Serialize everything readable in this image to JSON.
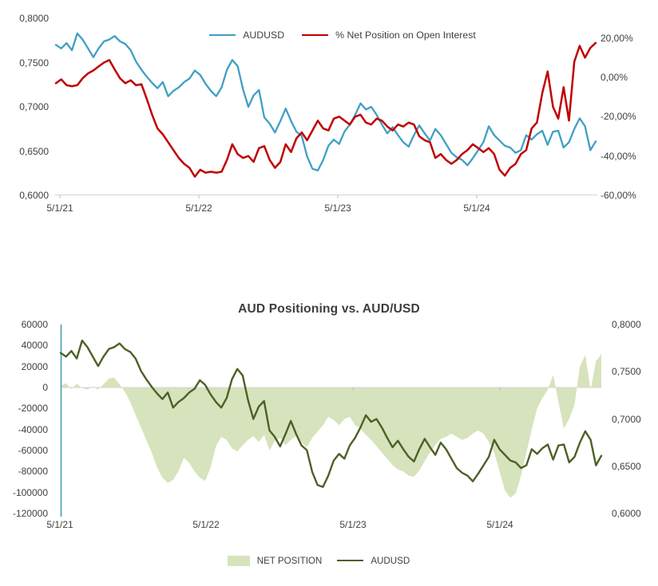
{
  "page": {
    "background": "#ffffff"
  },
  "colors": {
    "audusd_blue": "#3f9fc4",
    "net_pct_red": "#c00000",
    "net_position_fill": "#d6e3bc",
    "audusd_olive": "#4d6026",
    "axis_line": "#d6d6d6",
    "tick_mark": "#bfbfbf",
    "label_text": "#404040",
    "secondary_axis_line": "#3194ad"
  },
  "chart_data": [
    {
      "type": "line",
      "title": "",
      "legend_position": "top",
      "grid": "off",
      "x_tick_labels": [
        "5/1/21",
        "5/1/22",
        "5/1/23",
        "5/1/24"
      ],
      "y_left_axis": {
        "min": 0.6,
        "max": 0.8,
        "tick_labels_top_to_bottom": [
          "0,8000",
          "0,7500",
          "0,7000",
          "0,6500",
          "0,6000"
        ],
        "tick_values_top_to_bottom": [
          0.8,
          0.75,
          0.7,
          0.65,
          0.6
        ]
      },
      "y_right_axis": {
        "min": -60,
        "max": 30,
        "tick_labels_top_to_bottom": [
          "20,00%",
          "0,00%",
          "-20,00%",
          "-40,00%",
          "-60,00%"
        ],
        "tick_values_top_to_bottom": [
          20,
          0,
          -20,
          -40,
          -60
        ]
      },
      "series": [
        {
          "name": "AUDUSD",
          "type": "line",
          "axis": "left",
          "color_key": "audusd_blue",
          "values": [
            0.77,
            0.766,
            0.772,
            0.764,
            0.783,
            0.776,
            0.766,
            0.756,
            0.766,
            0.774,
            0.776,
            0.78,
            0.774,
            0.771,
            0.764,
            0.751,
            0.742,
            0.734,
            0.727,
            0.721,
            0.728,
            0.712,
            0.718,
            0.722,
            0.728,
            0.732,
            0.741,
            0.736,
            0.726,
            0.718,
            0.712,
            0.722,
            0.742,
            0.753,
            0.746,
            0.72,
            0.7,
            0.713,
            0.719,
            0.688,
            0.681,
            0.671,
            0.684,
            0.698,
            0.684,
            0.672,
            0.667,
            0.644,
            0.63,
            0.628,
            0.64,
            0.656,
            0.663,
            0.658,
            0.672,
            0.68,
            0.691,
            0.704,
            0.697,
            0.7,
            0.691,
            0.68,
            0.67,
            0.677,
            0.668,
            0.66,
            0.655,
            0.668,
            0.679,
            0.67,
            0.662,
            0.675,
            0.668,
            0.658,
            0.648,
            0.643,
            0.64,
            0.634,
            0.642,
            0.651,
            0.66,
            0.678,
            0.668,
            0.662,
            0.656,
            0.654,
            0.648,
            0.651,
            0.668,
            0.663,
            0.669,
            0.673,
            0.657,
            0.672,
            0.673,
            0.654,
            0.66,
            0.675,
            0.687,
            0.678,
            0.651,
            0.661
          ]
        },
        {
          "name": "% Net Position on Open Interest",
          "type": "line",
          "axis": "right",
          "color_key": "net_pct_red",
          "values": [
            -3,
            -1,
            -4,
            -4.5,
            -4,
            -0.5,
            2,
            3.5,
            5.5,
            7.5,
            8.8,
            4,
            -0.5,
            -3,
            -1.5,
            -4,
            -3.5,
            -11,
            -19,
            -26,
            -29,
            -33,
            -37,
            -41,
            -44,
            -46,
            -50.5,
            -47,
            -48.5,
            -48,
            -48.5,
            -48,
            -42,
            -34,
            -39,
            -41,
            -40,
            -43,
            -36,
            -35,
            -42,
            -46,
            -43,
            -34,
            -38,
            -31,
            -28,
            -32,
            -27,
            -22,
            -26,
            -27,
            -21,
            -20,
            -22,
            -24,
            -20,
            -19,
            -23,
            -24,
            -21,
            -22,
            -25,
            -27,
            -24,
            -25,
            -23,
            -24,
            -30,
            -32,
            -33,
            -41,
            -39,
            -42,
            -44,
            -42,
            -39,
            -37,
            -34,
            -36,
            -38,
            -36,
            -39,
            -47,
            -50,
            -46,
            -44,
            -39,
            -37,
            -26,
            -23,
            -8,
            3,
            -15,
            -21,
            -5,
            -22,
            8,
            16,
            10,
            15,
            17.5
          ]
        }
      ]
    },
    {
      "type": "area+line",
      "title": "AUD Positioning vs. AUD/USD",
      "legend_position": "bottom",
      "grid": "off",
      "x_tick_labels": [
        "5/1/21",
        "5/1/22",
        "5/1/23",
        "5/1/24"
      ],
      "y_left_axis": {
        "min": -120000,
        "max": 60000,
        "tick_labels_top_to_bottom": [
          "60000",
          "40000",
          "20000",
          "0",
          "-20000",
          "-40000",
          "-60000",
          "-80000",
          "-100000",
          "-120000"
        ],
        "tick_values_top_to_bottom": [
          60000,
          40000,
          20000,
          0,
          -20000,
          -40000,
          -60000,
          -80000,
          -100000,
          -120000
        ]
      },
      "y_right_axis": {
        "min": 0.6,
        "max": 0.8,
        "tick_labels_top_to_bottom": [
          "0,8000",
          "0,7500",
          "0,7000",
          "0,6500",
          "0,6000"
        ],
        "tick_values_top_to_bottom": [
          0.8,
          0.75,
          0.7,
          0.65,
          0.6
        ]
      },
      "series": [
        {
          "name": "NET POSITION",
          "type": "area",
          "axis": "left",
          "color_key": "net_position_fill",
          "values": [
            1500,
            4000,
            -1500,
            3500,
            -500,
            -2000,
            1000,
            -2000,
            3000,
            8500,
            9500,
            3000,
            -4000,
            -14000,
            -26000,
            -38000,
            -50000,
            -62000,
            -76000,
            -86000,
            -91000,
            -88000,
            -80000,
            -67000,
            -72000,
            -80000,
            -86000,
            -89000,
            -76000,
            -56000,
            -47000,
            -50000,
            -58000,
            -61000,
            -55000,
            -50000,
            -46000,
            -52000,
            -45000,
            -60000,
            -51000,
            -48000,
            -55000,
            -50000,
            -46000,
            -52000,
            -57000,
            -48000,
            -42000,
            -36000,
            -28000,
            -31000,
            -36000,
            -30000,
            -28000,
            -36000,
            -39000,
            -45000,
            -50000,
            -56000,
            -62000,
            -68000,
            -74000,
            -78000,
            -80000,
            -84000,
            -85000,
            -79000,
            -70000,
            -62000,
            -55000,
            -49000,
            -47000,
            -44000,
            -47000,
            -50000,
            -48000,
            -44000,
            -41000,
            -44000,
            -52000,
            -62000,
            -80000,
            -98000,
            -105000,
            -101000,
            -84000,
            -62000,
            -40000,
            -20000,
            -10000,
            -2000,
            12000,
            -14000,
            -39000,
            -30000,
            -16000,
            20000,
            31000,
            -2000,
            25000,
            32000
          ]
        },
        {
          "name": "AUDUSD",
          "type": "line",
          "axis": "right",
          "color_key": "audusd_olive",
          "values": [
            0.77,
            0.766,
            0.772,
            0.764,
            0.783,
            0.776,
            0.766,
            0.756,
            0.766,
            0.774,
            0.776,
            0.78,
            0.774,
            0.771,
            0.764,
            0.751,
            0.742,
            0.734,
            0.727,
            0.721,
            0.728,
            0.712,
            0.718,
            0.722,
            0.728,
            0.732,
            0.741,
            0.736,
            0.726,
            0.718,
            0.712,
            0.722,
            0.742,
            0.753,
            0.746,
            0.72,
            0.7,
            0.713,
            0.719,
            0.688,
            0.681,
            0.671,
            0.684,
            0.698,
            0.684,
            0.672,
            0.667,
            0.644,
            0.63,
            0.628,
            0.64,
            0.656,
            0.663,
            0.658,
            0.672,
            0.68,
            0.691,
            0.704,
            0.697,
            0.7,
            0.691,
            0.68,
            0.67,
            0.677,
            0.668,
            0.66,
            0.655,
            0.668,
            0.679,
            0.67,
            0.662,
            0.675,
            0.668,
            0.658,
            0.648,
            0.643,
            0.64,
            0.634,
            0.642,
            0.651,
            0.66,
            0.678,
            0.668,
            0.662,
            0.656,
            0.654,
            0.648,
            0.651,
            0.668,
            0.663,
            0.669,
            0.673,
            0.657,
            0.672,
            0.673,
            0.654,
            0.66,
            0.675,
            0.687,
            0.678,
            0.651,
            0.661
          ]
        }
      ]
    }
  ]
}
